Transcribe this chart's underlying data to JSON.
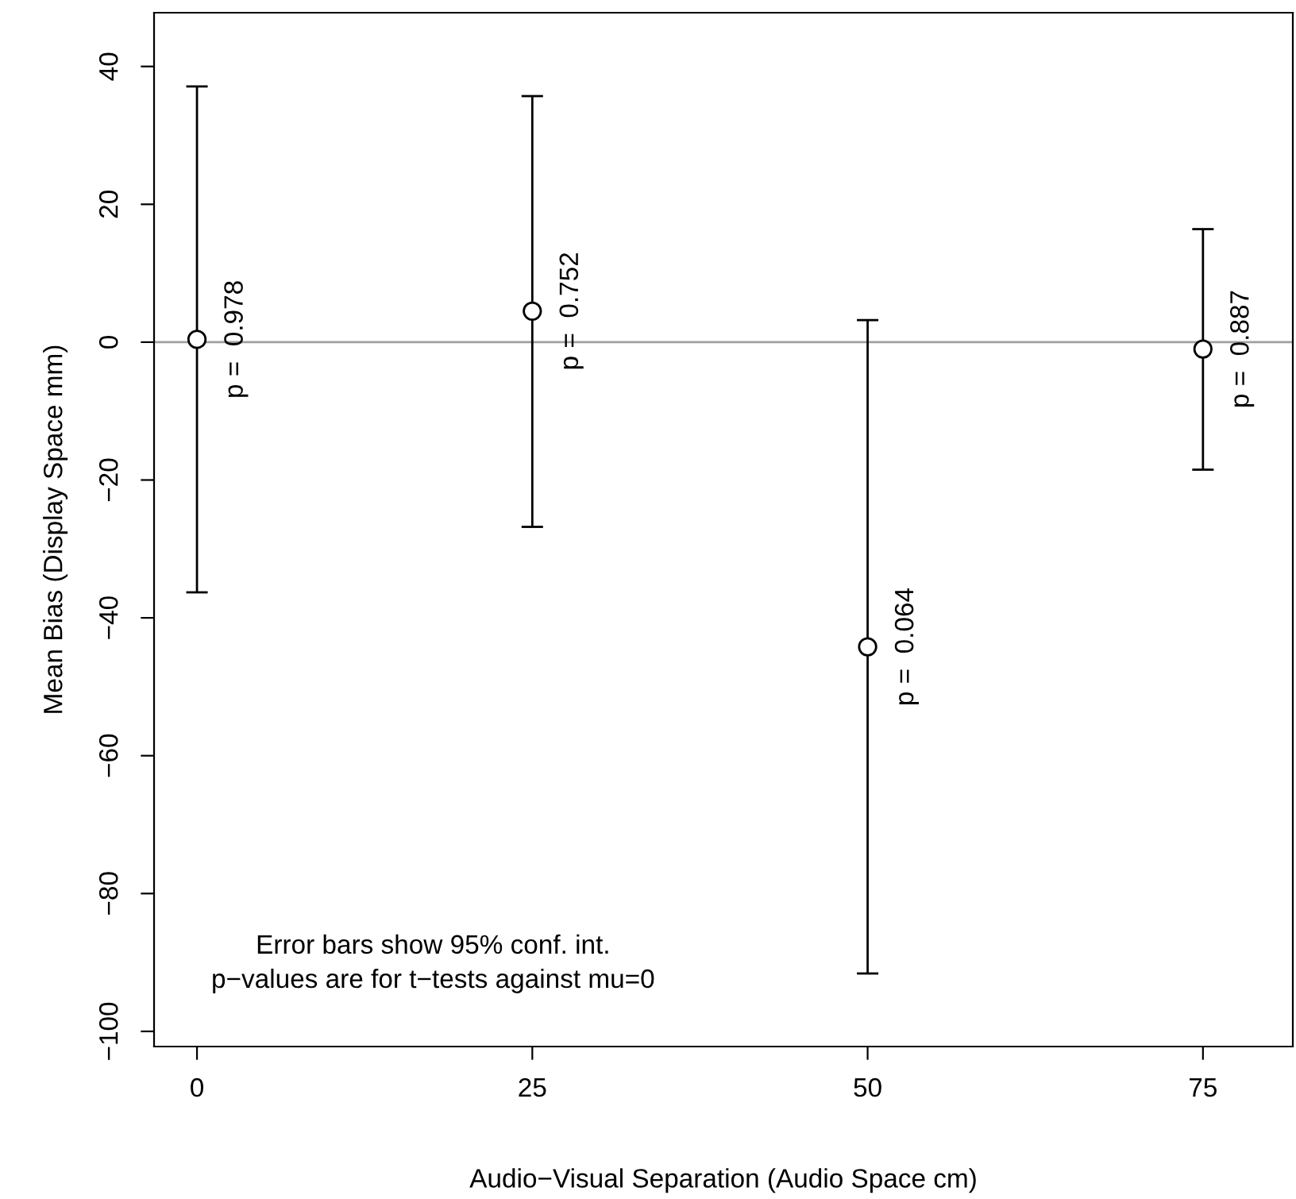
{
  "chart_data": {
    "type": "scatter",
    "xlabel": "Audio−Visual Separation (Audio Space cm)",
    "ylabel": "Mean Bias (Display Space mm)",
    "x": [
      0,
      25,
      50,
      75
    ],
    "values": [
      0.4,
      4.5,
      -44.2,
      -1.0
    ],
    "errors": [
      [
        -36.3,
        37.1
      ],
      [
        -26.8,
        35.7
      ],
      [
        -91.6,
        3.2
      ],
      [
        -18.5,
        16.4
      ]
    ],
    "color": "#000000",
    "marker": "circle",
    "xlim": [
      -3.2,
      81.7
    ],
    "xticks": [
      0,
      25,
      50,
      75
    ],
    "ylim": [
      -102.2,
      47.8
    ],
    "yticks": [
      -100,
      -80,
      -60,
      -40,
      -20,
      0,
      20,
      40
    ],
    "ref_lines": [
      {
        "axis": "y",
        "value": 0,
        "color": "#a0a0a0"
      }
    ],
    "annotations": [
      {
        "text": "p =  0.978",
        "x": 0,
        "y": 0.4
      },
      {
        "text": "p =  0.752",
        "x": 25,
        "y": 4.5
      },
      {
        "text": "p =  0.064",
        "x": 50,
        "y": -44.2
      },
      {
        "text": "p =  0.887",
        "x": 75,
        "y": -1.0
      },
      "Error bars show 95% conf. int.\np−values are for t−tests against mu=0"
    ],
    "grid": false,
    "legend": false
  }
}
